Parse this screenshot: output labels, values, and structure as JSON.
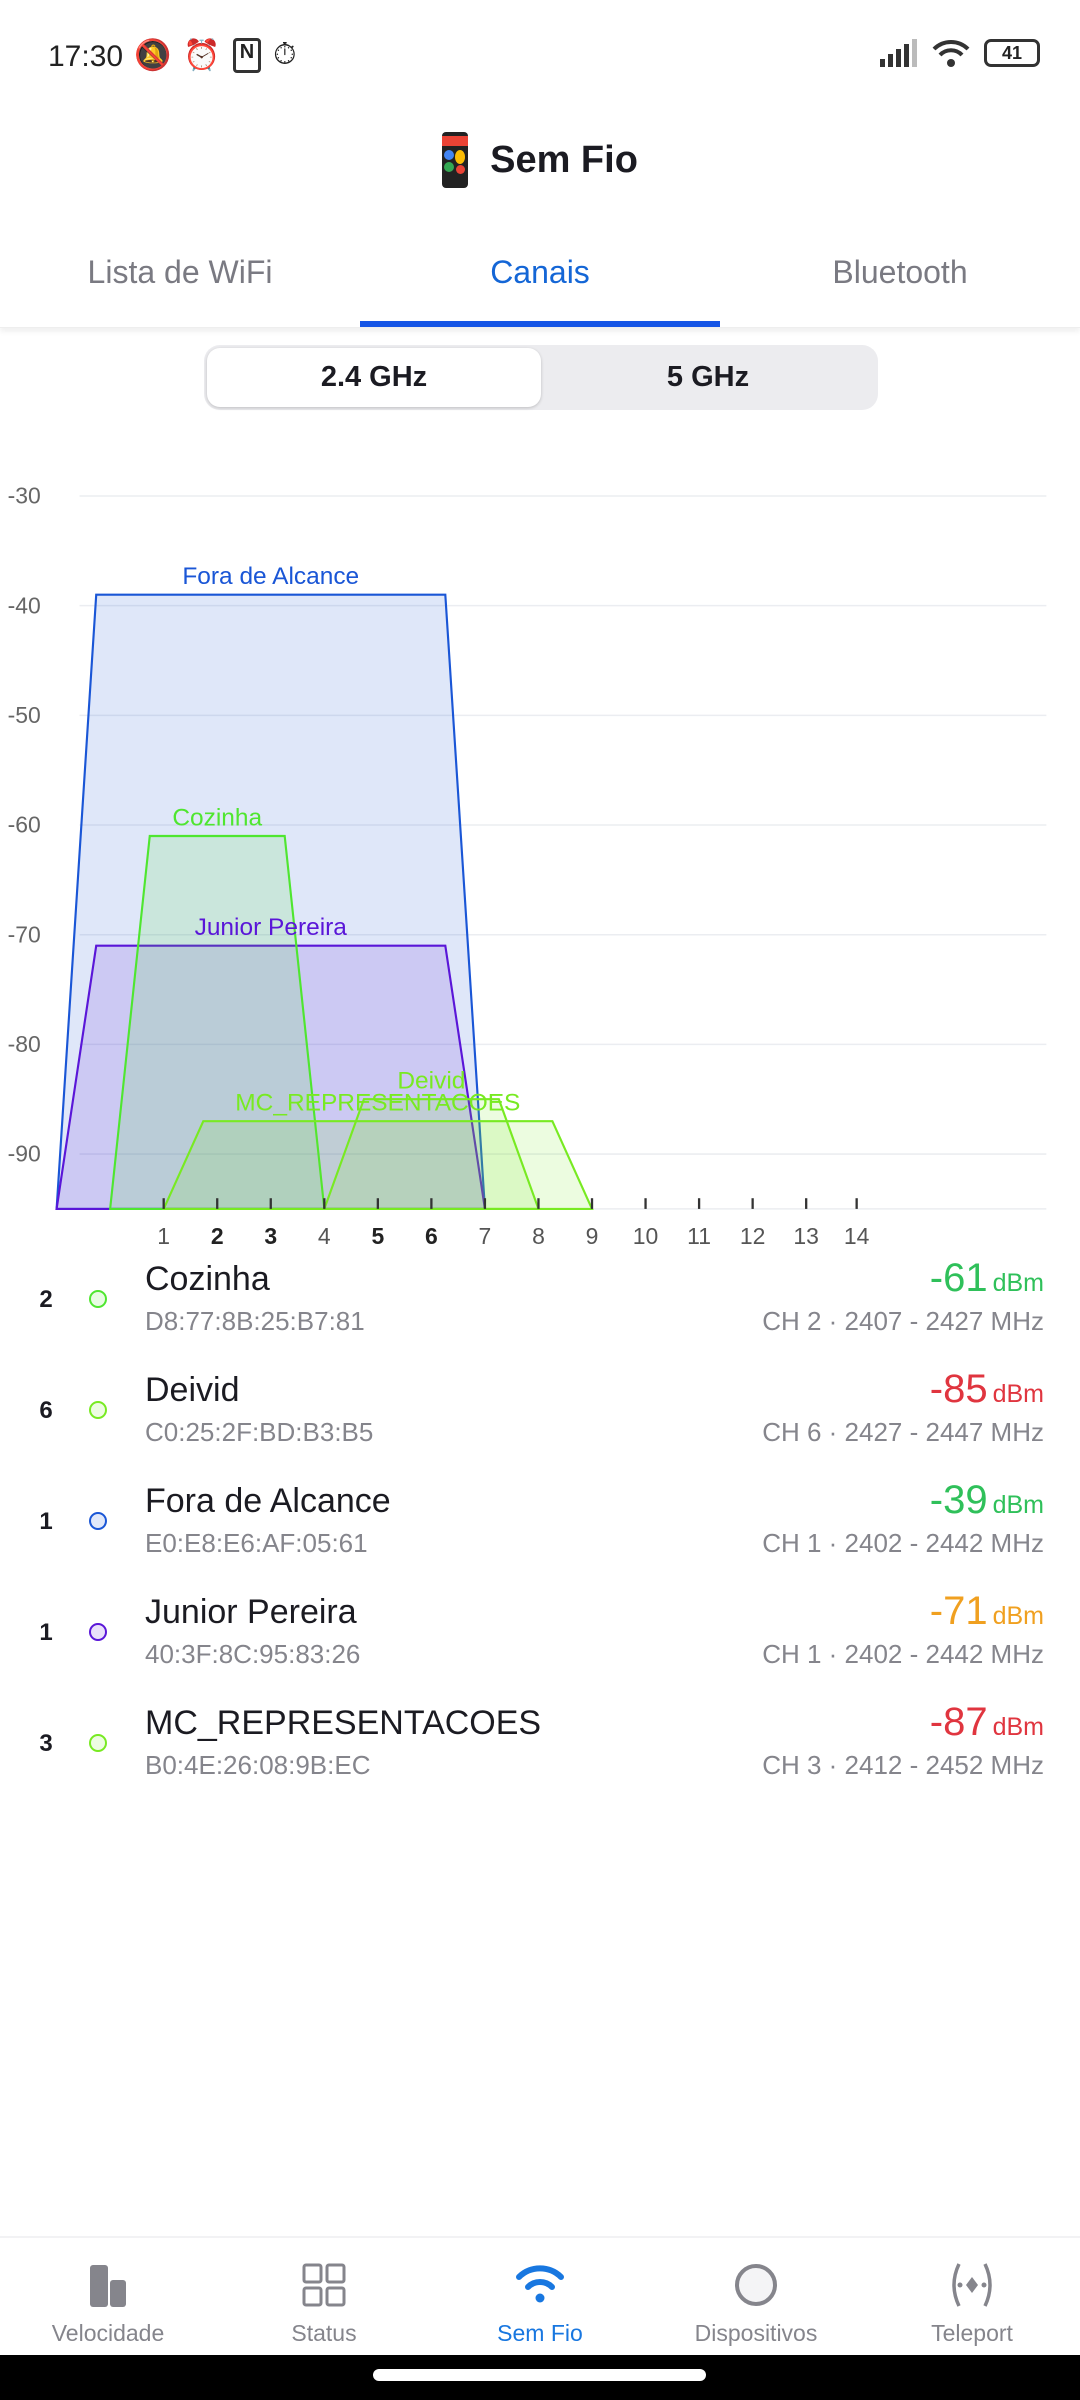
{
  "status_bar": {
    "time": "17:30",
    "battery": "41",
    "icons": [
      "mute-icon",
      "alarm-icon",
      "nfc-icon",
      "alarm-clock-icon",
      "signal-icon",
      "wifi-icon",
      "battery-icon"
    ]
  },
  "header": {
    "title": "Sem Fio",
    "icon": "app-phone-icon"
  },
  "tabs": [
    {
      "label": "Lista de WiFi",
      "active": false
    },
    {
      "label": "Canais",
      "active": true
    },
    {
      "label": "Bluetooth",
      "active": false
    }
  ],
  "band_selector": [
    {
      "label": "2.4 GHz",
      "selected": true
    },
    {
      "label": "5 GHz",
      "selected": false
    }
  ],
  "chart_data": {
    "type": "area",
    "ylim": [
      -95,
      -30
    ],
    "yticks": [
      "-30",
      "-40",
      "-50",
      "-60",
      "-70",
      "-80",
      "-90"
    ],
    "xticks": [
      {
        "label": "1",
        "channel": 1,
        "bold": false
      },
      {
        "label": "2",
        "channel": 2,
        "bold": true
      },
      {
        "label": "3",
        "channel": 3,
        "bold": true
      },
      {
        "label": "4",
        "channel": 4,
        "bold": false
      },
      {
        "label": "5",
        "channel": 5,
        "bold": true
      },
      {
        "label": "6",
        "channel": 6,
        "bold": true
      },
      {
        "label": "7",
        "channel": 7,
        "bold": false
      },
      {
        "label": "8",
        "channel": 8,
        "bold": false
      },
      {
        "label": "9",
        "channel": 9,
        "bold": false
      },
      {
        "label": "10",
        "channel": 10,
        "bold": false
      },
      {
        "label": "11",
        "channel": 11,
        "bold": false
      },
      {
        "label": "12",
        "channel": 12,
        "bold": false
      },
      {
        "label": "13",
        "channel": 13,
        "bold": false
      },
      {
        "label": "14",
        "channel": 14,
        "bold": false
      }
    ],
    "grid": true,
    "series": [
      {
        "name": "Fora de Alcance",
        "start_mhz": 2402,
        "end_mhz": 2442,
        "dbm": -39,
        "color": "#1a56d6"
      },
      {
        "name": "Junior Pereira",
        "start_mhz": 2402,
        "end_mhz": 2442,
        "dbm": -71,
        "color": "#5a16d8"
      },
      {
        "name": "Cozinha",
        "start_mhz": 2407,
        "end_mhz": 2427,
        "dbm": -61,
        "color": "#4fe630"
      },
      {
        "name": "MC_REPRESENTACOES",
        "start_mhz": 2412,
        "end_mhz": 2452,
        "dbm": -87,
        "color": "#78ea22"
      },
      {
        "name": "Deivid",
        "start_mhz": 2427,
        "end_mhz": 2447,
        "dbm": -85,
        "color": "#78ea22"
      }
    ]
  },
  "networks": [
    {
      "channel": "2",
      "name": "Cozinha",
      "mac": "D8:77:8B:25:B7:81",
      "dbm": "-61",
      "unit": "dBm",
      "freq": "CH 2 · 2407 - 2427 MHz",
      "dot_color": "#4fe630",
      "signal_color": "#2fc05a"
    },
    {
      "channel": "6",
      "name": "Deivid",
      "mac": "C0:25:2F:BD:B3:B5",
      "dbm": "-85",
      "unit": "dBm",
      "freq": "CH 6 · 2427 - 2447 MHz",
      "dot_color": "#78ea22",
      "signal_color": "#e0353f"
    },
    {
      "channel": "1",
      "name": "Fora de Alcance",
      "mac": "E0:E8:E6:AF:05:61",
      "dbm": "-39",
      "unit": "dBm",
      "freq": "CH 1 · 2402 - 2442 MHz",
      "dot_color": "#1a56d6",
      "signal_color": "#2fc05a"
    },
    {
      "channel": "1",
      "name": "Junior Pereira",
      "mac": "40:3F:8C:95:83:26",
      "dbm": "-71",
      "unit": "dBm",
      "freq": "CH 1 · 2402 - 2442 MHz",
      "dot_color": "#5a16d8",
      "signal_color": "#f0a020"
    },
    {
      "channel": "3",
      "name": "MC_REPRESENTACOES",
      "mac": "B0:4E:26:08:9B:EC",
      "dbm": "-87",
      "unit": "dBm",
      "freq": "CH 3 · 2412 - 2452 MHz",
      "dot_color": "#78ea22",
      "signal_color": "#e0353f"
    }
  ],
  "bottom_nav": [
    {
      "label": "Velocidade",
      "icon": "speed-bars-icon",
      "active": false
    },
    {
      "label": "Status",
      "icon": "grid-icon",
      "active": false
    },
    {
      "label": "Sem Fio",
      "icon": "wifi-icon",
      "active": true
    },
    {
      "label": "Dispositivos",
      "icon": "circle-icon",
      "active": false
    },
    {
      "label": "Teleport",
      "icon": "teleport-icon",
      "active": false
    }
  ],
  "accent_color": "#1555e6"
}
